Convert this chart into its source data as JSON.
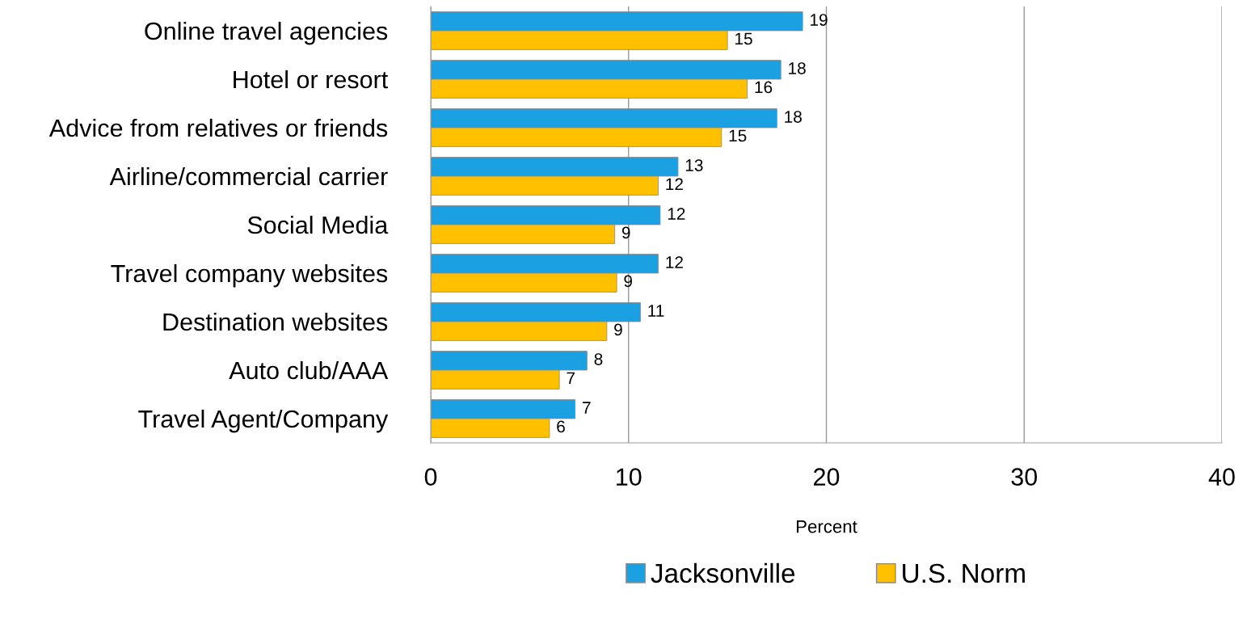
{
  "chart_data": {
    "type": "bar",
    "orientation": "horizontal",
    "xlabel": "Percent",
    "categories": [
      "Online travel agencies",
      "Hotel or resort",
      "Advice from relatives or friends",
      "Airline/commercial carrier",
      "Social Media",
      "Travel company websites",
      "Destination websites",
      "Auto club/AAA",
      "Travel Agent/Company"
    ],
    "series": [
      {
        "name": "Jacksonville",
        "color": "#1ba1e2",
        "values": [
          18.8,
          17.7,
          17.5,
          12.5,
          11.6,
          11.5,
          10.6,
          7.9,
          7.3
        ],
        "value_labels": [
          "19",
          "18",
          "18",
          "13",
          "12",
          "12",
          "11",
          "8",
          "7"
        ]
      },
      {
        "name": "U.S. Norm",
        "color": "#ffc000",
        "values": [
          15.0,
          16.0,
          14.7,
          11.5,
          9.3,
          9.4,
          8.9,
          6.5,
          6.0
        ],
        "value_labels": [
          "15",
          "16",
          "15",
          "12",
          "9",
          "9",
          "9",
          "7",
          "6"
        ]
      }
    ],
    "xlim": [
      0,
      40
    ],
    "xticks": [
      0,
      10,
      20,
      30,
      40
    ],
    "grid": "x",
    "legend": "bottom"
  }
}
